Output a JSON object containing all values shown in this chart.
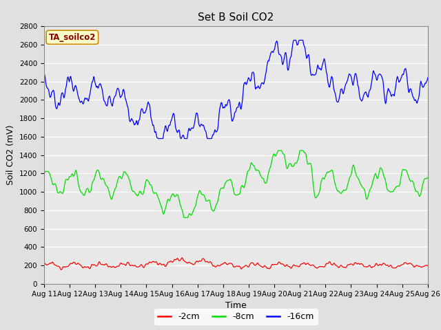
{
  "title": "Set B Soil CO2",
  "xlabel": "Time",
  "ylabel": "Soil CO2 (mV)",
  "annotation": "TA_soilco2",
  "ylim": [
    0,
    2800
  ],
  "yticks": [
    0,
    200,
    400,
    600,
    800,
    1000,
    1200,
    1400,
    1600,
    1800,
    2000,
    2200,
    2400,
    2600,
    2800
  ],
  "xtick_labels": [
    "Aug 11",
    "Aug 12",
    "Aug 13",
    "Aug 14",
    "Aug 15",
    "Aug 16",
    "Aug 17",
    "Aug 18",
    "Aug 19",
    "Aug 20",
    "Aug 21",
    "Aug 22",
    "Aug 23",
    "Aug 24",
    "Aug 25",
    "Aug 26"
  ],
  "line_colors": {
    "2cm": "#ff0000",
    "8cm": "#00dd00",
    "16cm": "#0000ff"
  },
  "legend_labels": [
    "-2cm",
    "-8cm",
    "-16cm"
  ],
  "legend_colors": [
    "#ff0000",
    "#00dd00",
    "#0000ff"
  ],
  "background_color": "#e0e0e0",
  "plot_bg_color": "#e8e8e8",
  "annotation_bg": "#ffffcc",
  "annotation_border": "#cc8800",
  "annotation_text_color": "#880000",
  "title_fontsize": 11,
  "axis_label_fontsize": 9,
  "tick_fontsize": 7.5,
  "legend_fontsize": 9,
  "figsize": [
    6.4,
    4.8
  ],
  "dpi": 100
}
